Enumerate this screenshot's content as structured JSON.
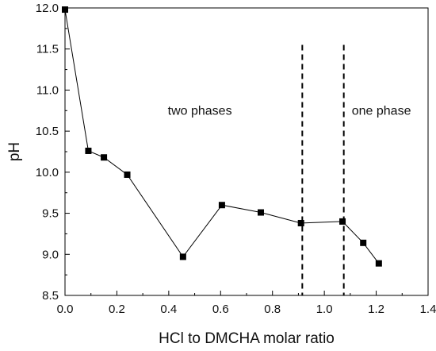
{
  "chart_data": {
    "type": "line",
    "title": "",
    "xlabel": "HCl to DMCHA molar ratio",
    "ylabel": "pH",
    "xlim": [
      0.0,
      1.4
    ],
    "ylim": [
      8.5,
      12.0
    ],
    "xticks": [
      "0.0",
      "0.2",
      "0.4",
      "0.6",
      "0.8",
      "1.0",
      "1.2",
      "1.4"
    ],
    "yticks": [
      "8.5",
      "9.0",
      "9.5",
      "10.0",
      "10.5",
      "11.0",
      "11.5",
      "12.0"
    ],
    "grid": false,
    "legend": "none",
    "series": [
      {
        "marker": "square",
        "color": "#000000",
        "x": [
          0.0,
          0.09,
          0.15,
          0.24,
          0.455,
          0.605,
          0.755,
          0.91,
          1.07,
          1.15,
          1.21
        ],
        "y": [
          11.98,
          10.26,
          10.18,
          9.97,
          8.97,
          9.6,
          9.51,
          9.38,
          9.4,
          9.14,
          8.89
        ]
      }
    ],
    "reference_lines": [
      {
        "orientation": "vertical",
        "x": 0.915,
        "style": "dashed"
      },
      {
        "orientation": "vertical",
        "x": 1.075,
        "style": "dashed"
      }
    ],
    "annotations": [
      {
        "text": "two phases",
        "x": 0.52,
        "y": 10.7
      },
      {
        "text": "one phase",
        "x": 1.22,
        "y": 10.7
      }
    ]
  }
}
